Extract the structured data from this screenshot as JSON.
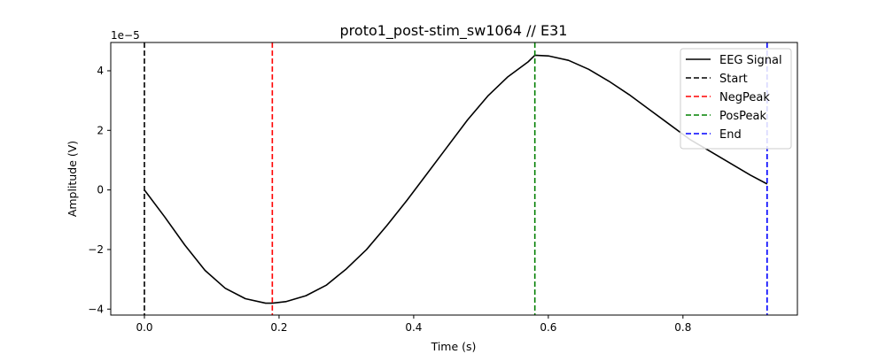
{
  "chart_data": {
    "type": "line",
    "title": "proto1_post-stim_sw1064 // E31",
    "xlabel": "Time (s)",
    "ylabel": "Amplitude (V)",
    "y_offset_label": "1e−5",
    "xlim": [
      -0.05,
      0.97
    ],
    "ylim": [
      -4.2,
      4.95
    ],
    "x_ticks": [
      0.0,
      0.2,
      0.4,
      0.6,
      0.8
    ],
    "x_tick_labels": [
      "0.0",
      "0.2",
      "0.4",
      "0.6",
      "0.8"
    ],
    "y_ticks": [
      -4,
      -2,
      0,
      2,
      4
    ],
    "y_tick_labels": [
      "−4",
      "−2",
      "0",
      "2",
      "4"
    ],
    "grid": false,
    "legend_position": "top-right",
    "series": [
      {
        "name": "EEG Signal",
        "color": "#000000",
        "style": "solid",
        "x": [
          0.0,
          0.03,
          0.06,
          0.09,
          0.12,
          0.15,
          0.18,
          0.19,
          0.21,
          0.24,
          0.27,
          0.3,
          0.33,
          0.36,
          0.39,
          0.42,
          0.45,
          0.48,
          0.51,
          0.54,
          0.57,
          0.58,
          0.6,
          0.63,
          0.66,
          0.69,
          0.72,
          0.75,
          0.78,
          0.81,
          0.84,
          0.87,
          0.9,
          0.925
        ],
        "y": [
          0.0,
          -0.9,
          -1.85,
          -2.7,
          -3.3,
          -3.65,
          -3.8,
          -3.8,
          -3.75,
          -3.55,
          -3.2,
          -2.65,
          -2.0,
          -1.2,
          -0.35,
          0.55,
          1.45,
          2.35,
          3.15,
          3.8,
          4.3,
          4.52,
          4.5,
          4.35,
          4.05,
          3.65,
          3.2,
          2.7,
          2.2,
          1.7,
          1.3,
          0.9,
          0.5,
          0.2
        ]
      }
    ],
    "vlines": [
      {
        "name": "Start",
        "x": 0.0,
        "color": "#000000"
      },
      {
        "name": "NegPeak",
        "x": 0.19,
        "color": "#ff0000"
      },
      {
        "name": "PosPeak",
        "x": 0.58,
        "color": "#008000"
      },
      {
        "name": "End",
        "x": 0.925,
        "color": "#0000ff"
      }
    ]
  }
}
